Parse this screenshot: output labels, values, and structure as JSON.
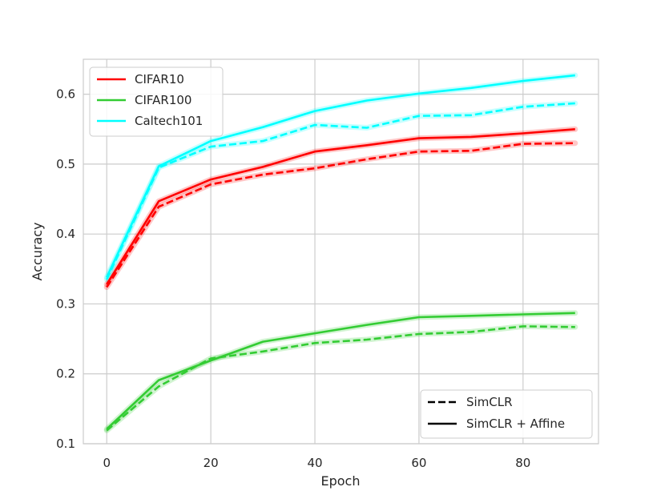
{
  "chart_data": {
    "type": "line",
    "title": "",
    "xlabel": "Epoch",
    "ylabel": "Accuracy",
    "xlim": [
      -4.5,
      94.5
    ],
    "ylim": [
      0.1,
      0.65
    ],
    "xticks": [
      0,
      20,
      40,
      60,
      80
    ],
    "yticks": [
      0.1,
      0.2,
      0.3,
      0.4,
      0.5,
      0.6
    ],
    "ytick_labels": [
      "0.1",
      "0.2",
      "0.3",
      "0.4",
      "0.5",
      "0.6"
    ],
    "grid": true,
    "x": [
      0,
      10,
      20,
      30,
      40,
      50,
      60,
      70,
      80,
      90
    ],
    "series": [
      {
        "name": "CIFAR10",
        "variant": "SimCLR + Affine",
        "color": "#ff0000",
        "style": "solid",
        "values": [
          0.328,
          0.447,
          0.478,
          0.496,
          0.518,
          0.527,
          0.537,
          0.539,
          0.544,
          0.55
        ]
      },
      {
        "name": "CIFAR10",
        "variant": "SimCLR",
        "color": "#ff0000",
        "style": "dashed",
        "values": [
          0.324,
          0.439,
          0.471,
          0.485,
          0.494,
          0.507,
          0.518,
          0.519,
          0.529,
          0.53
        ]
      },
      {
        "name": "CIFAR100",
        "variant": "SimCLR + Affine",
        "color": "#33cc33",
        "style": "solid",
        "values": [
          0.121,
          0.191,
          0.219,
          0.246,
          0.258,
          0.27,
          0.281,
          0.283,
          0.285,
          0.287
        ]
      },
      {
        "name": "CIFAR100",
        "variant": "SimCLR",
        "color": "#33cc33",
        "style": "dashed",
        "values": [
          0.119,
          0.182,
          0.222,
          0.232,
          0.244,
          0.249,
          0.257,
          0.26,
          0.268,
          0.267
        ]
      },
      {
        "name": "Caltech101",
        "variant": "SimCLR + Affine",
        "color": "#00ffff",
        "style": "solid",
        "values": [
          0.338,
          0.497,
          0.533,
          0.553,
          0.576,
          0.591,
          0.601,
          0.609,
          0.619,
          0.627
        ]
      },
      {
        "name": "Caltech101",
        "variant": "SimCLR",
        "color": "#00ffff",
        "style": "dashed",
        "values": [
          0.335,
          0.495,
          0.525,
          0.533,
          0.556,
          0.552,
          0.569,
          0.57,
          0.582,
          0.587
        ]
      }
    ],
    "legend_datasets": {
      "placement": "top-left",
      "entries": [
        {
          "label": "CIFAR10",
          "color": "#ff0000"
        },
        {
          "label": "CIFAR100",
          "color": "#33cc33"
        },
        {
          "label": "Caltech101",
          "color": "#00ffff"
        }
      ]
    },
    "legend_styles": {
      "placement": "bottom-right",
      "entries": [
        {
          "label": "SimCLR",
          "style": "dashed"
        },
        {
          "label": "SimCLR + Affine",
          "style": "solid"
        }
      ]
    }
  }
}
